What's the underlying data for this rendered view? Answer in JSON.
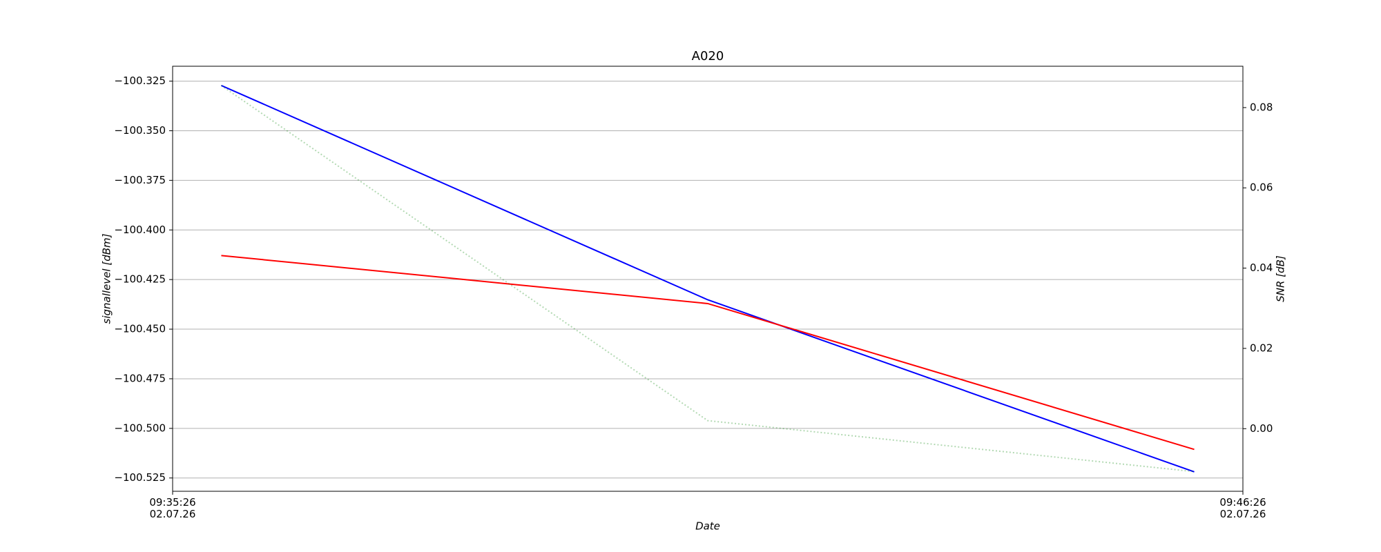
{
  "chart_data": {
    "type": "line",
    "title": "A020",
    "x_label": "Date",
    "y_label": "signallevel [dBm]",
    "y2_label": "SNR [dB]",
    "x": [
      "09:35:56",
      "09:40:56",
      "09:45:56"
    ],
    "xlim": [
      "09:35:26",
      "09:46:26"
    ],
    "xticks": [
      {
        "value": "09:35:26",
        "label": "09:35:26\n02.07.26"
      },
      {
        "value": "09:46:26",
        "label": "09:46:26\n02.07.26"
      }
    ],
    "ylim": [
      -100.5317,
      -100.3175
    ],
    "yticks": [
      {
        "value": -100.525,
        "label": "−100.525"
      },
      {
        "value": -100.5,
        "label": "−100.500"
      },
      {
        "value": -100.475,
        "label": "−100.475"
      },
      {
        "value": -100.45,
        "label": "−100.450"
      },
      {
        "value": -100.425,
        "label": "−100.425"
      },
      {
        "value": -100.4,
        "label": "−100.400"
      },
      {
        "value": -100.375,
        "label": "−100.375"
      },
      {
        "value": -100.35,
        "label": "−100.350"
      },
      {
        "value": -100.325,
        "label": "−100.325"
      }
    ],
    "y2lim": [
      -0.0156,
      0.0903
    ],
    "y2ticks": [
      {
        "value": 0,
        "label": "0.00"
      },
      {
        "value": 0.02,
        "label": "0.02"
      },
      {
        "value": 0.04,
        "label": "0.04"
      },
      {
        "value": 0.06,
        "label": "0.06"
      },
      {
        "value": 0.08,
        "label": "0.08"
      }
    ],
    "grid": true,
    "series": [
      {
        "color": "#0000ff",
        "values": [
          -100.3272,
          -100.4352,
          -100.5219
        ]
      },
      {
        "color": "#ff0000",
        "values": [
          -100.4129,
          -100.4371,
          -100.5106
        ]
      },
      {
        "color": "#008000",
        "alpha": 0.3,
        "linestyle": "dotted",
        "axis": "y2",
        "values": [
          0.0855,
          0.002,
          -0.0107
        ]
      }
    ]
  }
}
